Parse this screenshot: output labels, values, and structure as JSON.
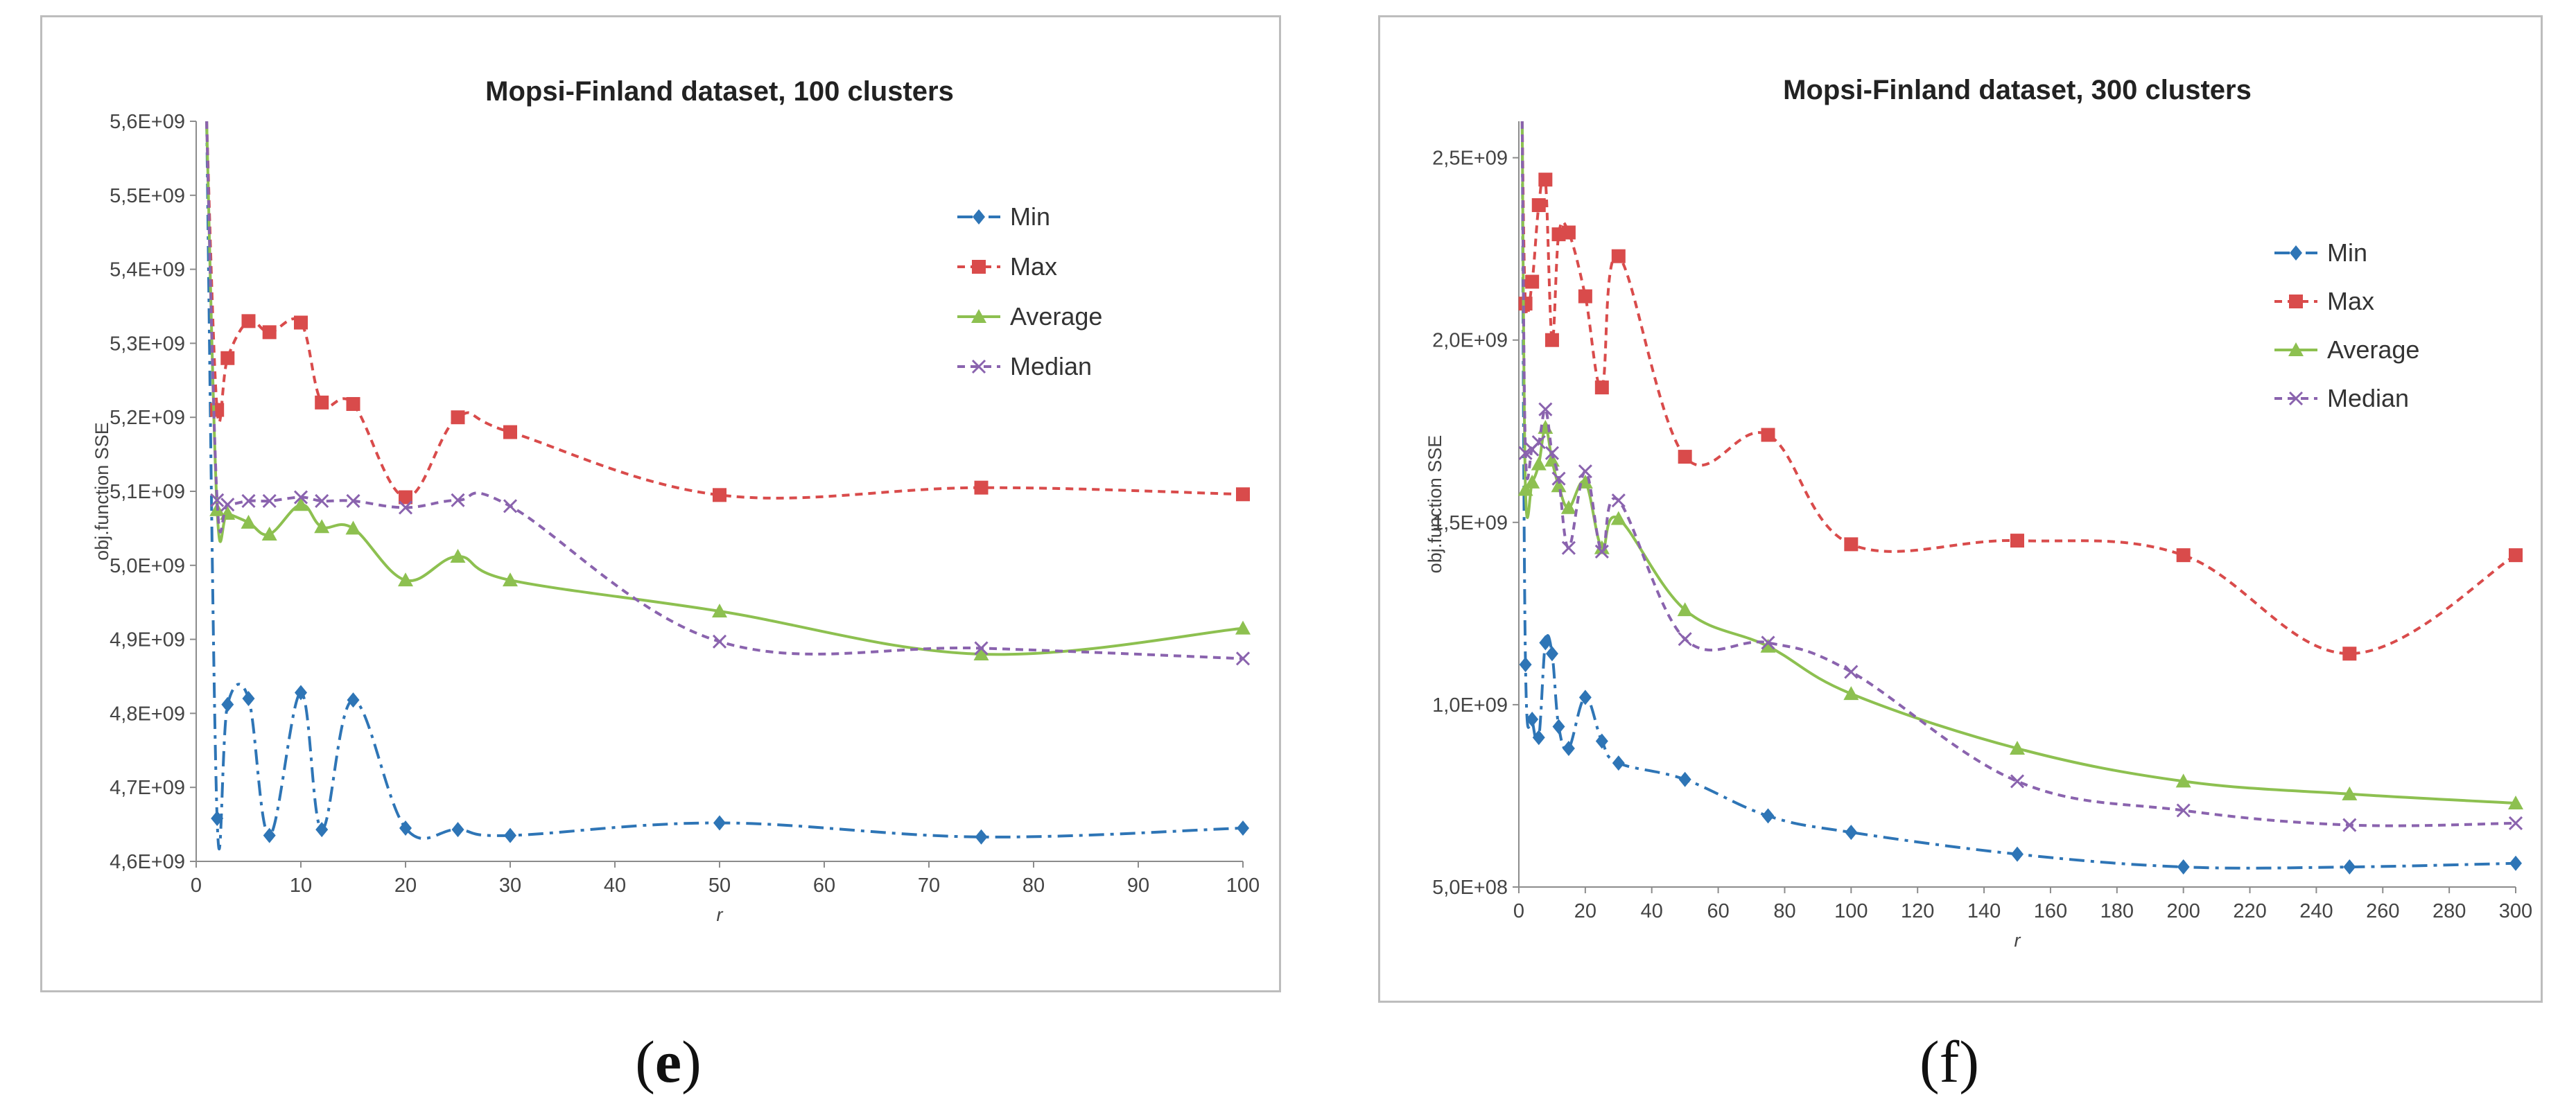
{
  "captions": {
    "e_open": "(",
    "e_letter": "e",
    "e_close": ")",
    "f": "(f)"
  },
  "colors": {
    "min": "#2E75B6",
    "max": "#D94B4B",
    "average": "#8DC050",
    "median": "#8A63AE"
  },
  "chart_data": [
    {
      "type": "line",
      "title": "Mopsi-Finland dataset, 100 clusters",
      "xlabel": "r",
      "ylabel": "obj.function SSE",
      "xlim": [
        0,
        100
      ],
      "xticks": [
        0,
        10,
        20,
        30,
        40,
        50,
        60,
        70,
        80,
        90,
        100
      ],
      "ylim": [
        4600000000,
        5600000000
      ],
      "yticks": [
        4600000000,
        4700000000,
        4800000000,
        4900000000,
        5000000000,
        5100000000,
        5200000000,
        5300000000,
        5400000000,
        5500000000,
        5600000000
      ],
      "ytick_labels": [
        "4,6E+09",
        "4,7E+09",
        "4,8E+09",
        "4,9E+09",
        "5,0E+09",
        "5,1E+09",
        "5,2E+09",
        "5,3E+09",
        "5,4E+09",
        "5,5E+09",
        "5,6E+09"
      ],
      "legend_position": "top-right",
      "grid": false,
      "series": [
        {
          "name": "Min",
          "marker": "diamond",
          "dash": "dashdot",
          "x": [
            1,
            2,
            3,
            5,
            7,
            10,
            12,
            15,
            20,
            25,
            30,
            50,
            75,
            100
          ],
          "y": [
            5600000000,
            4658000000,
            4812000000,
            4820000000,
            4635000000,
            4828000000,
            4643000000,
            4818000000,
            4645000000,
            4643000000,
            4635000000,
            4652000000,
            4633000000,
            4645000000
          ]
        },
        {
          "name": "Max",
          "marker": "square",
          "dash": "dashed",
          "x": [
            1,
            2,
            3,
            5,
            7,
            10,
            12,
            15,
            20,
            25,
            30,
            50,
            75,
            100
          ],
          "y": [
            5600000000,
            5210000000,
            5280000000,
            5330000000,
            5315000000,
            5328000000,
            5220000000,
            5218000000,
            5092000000,
            5200000000,
            5180000000,
            5095000000,
            5105000000,
            5096000000
          ]
        },
        {
          "name": "Average",
          "marker": "triangle",
          "dash": "solid",
          "x": [
            1,
            2,
            3,
            5,
            7,
            10,
            12,
            15,
            20,
            25,
            30,
            50,
            75,
            100
          ],
          "y": [
            5600000000,
            5075000000,
            5070000000,
            5058000000,
            5042000000,
            5082000000,
            5052000000,
            5050000000,
            4980000000,
            5012000000,
            4980000000,
            4938000000,
            4880000000,
            4915000000
          ]
        },
        {
          "name": "Median",
          "marker": "x",
          "dash": "dashed",
          "x": [
            1,
            2,
            3,
            5,
            7,
            10,
            12,
            15,
            20,
            25,
            30,
            50,
            75,
            100
          ],
          "y": [
            5600000000,
            5088000000,
            5082000000,
            5087000000,
            5087000000,
            5092000000,
            5087000000,
            5087000000,
            5078000000,
            5088000000,
            5080000000,
            4897000000,
            4888000000,
            4874000000
          ]
        }
      ]
    },
    {
      "type": "line",
      "title": "Mopsi-Finland dataset, 300 clusters",
      "xlabel": "r",
      "ylabel": "obj.function SSE",
      "xlim": [
        0,
        300
      ],
      "xticks": [
        0,
        20,
        40,
        60,
        80,
        100,
        120,
        140,
        160,
        180,
        200,
        220,
        240,
        260,
        280,
        300
      ],
      "ylim": [
        500000000,
        2600000000
      ],
      "yticks": [
        500000000,
        1000000000,
        1500000000,
        2000000000,
        2500000000
      ],
      "ytick_labels": [
        "5,0E+08",
        "1,0E+09",
        "1,5E+09",
        "2,0E+09",
        "2,5E+09"
      ],
      "legend_position": "top-right",
      "grid": false,
      "series": [
        {
          "name": "Min",
          "marker": "diamond",
          "dash": "dashdot",
          "x": [
            1,
            2,
            4,
            6,
            8,
            10,
            12,
            15,
            20,
            25,
            30,
            50,
            75,
            100,
            150,
            200,
            250,
            300
          ],
          "y": [
            2600000000,
            1110000000,
            960000000,
            910000000,
            1170000000,
            1140000000,
            940000000,
            880000000,
            1020000000,
            900000000,
            840000000,
            795000000,
            695000000,
            650000000,
            590000000,
            555000000,
            555000000,
            565000000
          ]
        },
        {
          "name": "Max",
          "marker": "square",
          "dash": "dashed",
          "x": [
            1,
            2,
            4,
            6,
            8,
            10,
            12,
            15,
            20,
            25,
            30,
            50,
            75,
            100,
            150,
            200,
            250,
            300
          ],
          "y": [
            2600000000,
            2100000000,
            2160000000,
            2370000000,
            2440000000,
            2000000000,
            2290000000,
            2295000000,
            2120000000,
            1870000000,
            2230000000,
            1680000000,
            1740000000,
            1440000000,
            1450000000,
            1410000000,
            1140000000,
            1410000000
          ]
        },
        {
          "name": "Average",
          "marker": "triangle",
          "dash": "solid",
          "x": [
            1,
            2,
            4,
            6,
            8,
            10,
            12,
            15,
            20,
            25,
            30,
            50,
            75,
            100,
            150,
            200,
            250,
            300
          ],
          "y": [
            2600000000,
            1590000000,
            1610000000,
            1660000000,
            1760000000,
            1670000000,
            1600000000,
            1540000000,
            1610000000,
            1430000000,
            1510000000,
            1260000000,
            1160000000,
            1030000000,
            880000000,
            790000000,
            755000000,
            730000000
          ]
        },
        {
          "name": "Median",
          "marker": "x",
          "dash": "dashed",
          "x": [
            1,
            2,
            4,
            6,
            8,
            10,
            12,
            15,
            20,
            25,
            30,
            50,
            75,
            100,
            150,
            200,
            250,
            300
          ],
          "y": [
            2600000000,
            1690000000,
            1700000000,
            1720000000,
            1810000000,
            1690000000,
            1620000000,
            1430000000,
            1640000000,
            1420000000,
            1560000000,
            1180000000,
            1170000000,
            1090000000,
            790000000,
            710000000,
            670000000,
            675000000
          ]
        }
      ]
    }
  ]
}
